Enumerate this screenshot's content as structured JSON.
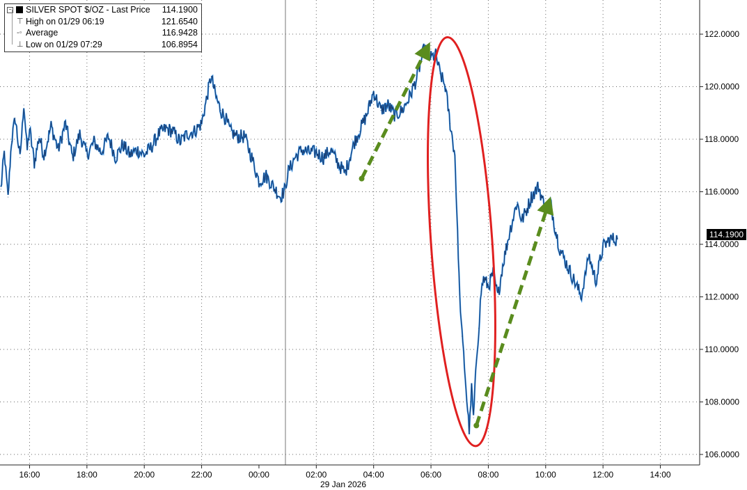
{
  "legend": {
    "title": "SILVER SPOT $/OZ - Last Price",
    "last_price": "114.1900",
    "high_label": "High on 01/29 06:19",
    "high_value": "121.6540",
    "avg_label": "Average",
    "avg_value": "116.9428",
    "low_label": "Low on 01/29 07:29",
    "low_value": "106.8954"
  },
  "last_price_tag": "114.1900",
  "date_label": "29 Jan 2026",
  "colors": {
    "series": "#1a3a6b",
    "series_highlight": "#2f8fe8",
    "ellipse": "#e02020",
    "arrow": "#5a8c1e"
  },
  "chart_data": {
    "type": "line",
    "title": "",
    "xlabel": "",
    "ylabel": "",
    "x_ticks": [
      "16:00",
      "18:00",
      "20:00",
      "22:00",
      "00:00",
      "02:00",
      "04:00",
      "06:00",
      "08:00",
      "10:00",
      "12:00",
      "14:00"
    ],
    "y_ticks": [
      "106.0000",
      "108.0000",
      "110.0000",
      "112.0000",
      "114.0000",
      "116.0000",
      "118.0000",
      "120.0000",
      "122.0000"
    ],
    "ylim": [
      105.6,
      123.3
    ],
    "xlim": [
      "28 Jan 15:00",
      "29 Jan 14:30"
    ],
    "grid": true,
    "series": [
      {
        "name": "SILVER SPOT $/OZ - Last Price",
        "x": [
          "15:00",
          "15:07",
          "15:15",
          "15:22",
          "15:30",
          "15:40",
          "15:48",
          "15:55",
          "16:00",
          "16:10",
          "16:20",
          "16:30",
          "16:45",
          "17:00",
          "17:15",
          "17:30",
          "17:45",
          "18:00",
          "18:15",
          "18:30",
          "18:45",
          "19:00",
          "19:15",
          "19:30",
          "19:45",
          "20:00",
          "20:15",
          "20:30",
          "20:45",
          "21:00",
          "21:15",
          "21:30",
          "21:45",
          "22:00",
          "22:10",
          "22:20",
          "22:30",
          "22:40",
          "22:50",
          "23:00",
          "23:15",
          "23:30",
          "23:45",
          "00:00",
          "00:15",
          "00:30",
          "00:45",
          "00:55",
          "01:00",
          "01:15",
          "01:30",
          "01:45",
          "02:00",
          "02:15",
          "02:30",
          "02:45",
          "03:00",
          "03:10",
          "03:20",
          "03:30",
          "03:45",
          "04:00",
          "04:15",
          "04:30",
          "04:45",
          "05:00",
          "05:15",
          "05:30",
          "05:45",
          "06:00",
          "06:10",
          "06:19",
          "06:30",
          "06:40",
          "06:50",
          "07:00",
          "07:05",
          "07:10",
          "07:15",
          "07:20",
          "07:25",
          "07:29",
          "07:35",
          "07:40",
          "07:45",
          "07:50",
          "08:00",
          "08:10",
          "08:20",
          "08:30",
          "08:45",
          "09:00",
          "09:10",
          "09:20",
          "09:30",
          "09:45",
          "10:00",
          "10:10",
          "10:20",
          "10:30",
          "10:45",
          "11:00",
          "11:15",
          "11:30",
          "11:45",
          "12:00",
          "12:15",
          "12:30"
        ],
        "values": [
          116.1,
          117.5,
          115.8,
          117.9,
          118.8,
          117.3,
          119.3,
          117.6,
          118.4,
          117.1,
          118.1,
          117.4,
          118.5,
          117.6,
          118.6,
          117.3,
          118.2,
          117.4,
          117.9,
          117.5,
          118.1,
          117.3,
          117.8,
          117.4,
          117.6,
          117.4,
          117.7,
          118.2,
          118.4,
          118.3,
          117.9,
          118.2,
          118.3,
          118.6,
          119.5,
          120.4,
          119.6,
          119.1,
          118.8,
          118.3,
          118.1,
          118.1,
          117.3,
          116.4,
          116.6,
          116.2,
          115.8,
          116.1,
          116.7,
          117.3,
          117.6,
          117.5,
          117.5,
          117.3,
          117.6,
          117.1,
          116.7,
          117.3,
          117.9,
          118.3,
          118.9,
          119.8,
          119.1,
          119.3,
          118.9,
          119.1,
          119.6,
          120.3,
          121.4,
          121.1,
          121.2,
          120.5,
          120.0,
          118.6,
          117.4,
          112.1,
          110.5,
          109.4,
          108.1,
          106.9,
          108.5,
          107.4,
          109.6,
          110.8,
          112.2,
          112.7,
          112.4,
          112.9,
          112.0,
          113.2,
          114.5,
          115.6,
          114.9,
          115.3,
          115.8,
          116.2,
          115.3,
          115.6,
          114.6,
          113.8,
          113.2,
          112.6,
          112.0,
          113.6,
          112.6,
          113.9,
          114.2,
          114.19
        ]
      }
    ],
    "annotations": [
      {
        "type": "arrow",
        "from": [
          "03:35",
          116.5
        ],
        "to": [
          "05:50",
          121.4
        ]
      },
      {
        "type": "ellipse",
        "around": "06:00-08:00 drop"
      },
      {
        "type": "arrow",
        "from": [
          "07:35",
          107.1
        ],
        "to": [
          "10:05",
          115.5
        ]
      }
    ]
  }
}
